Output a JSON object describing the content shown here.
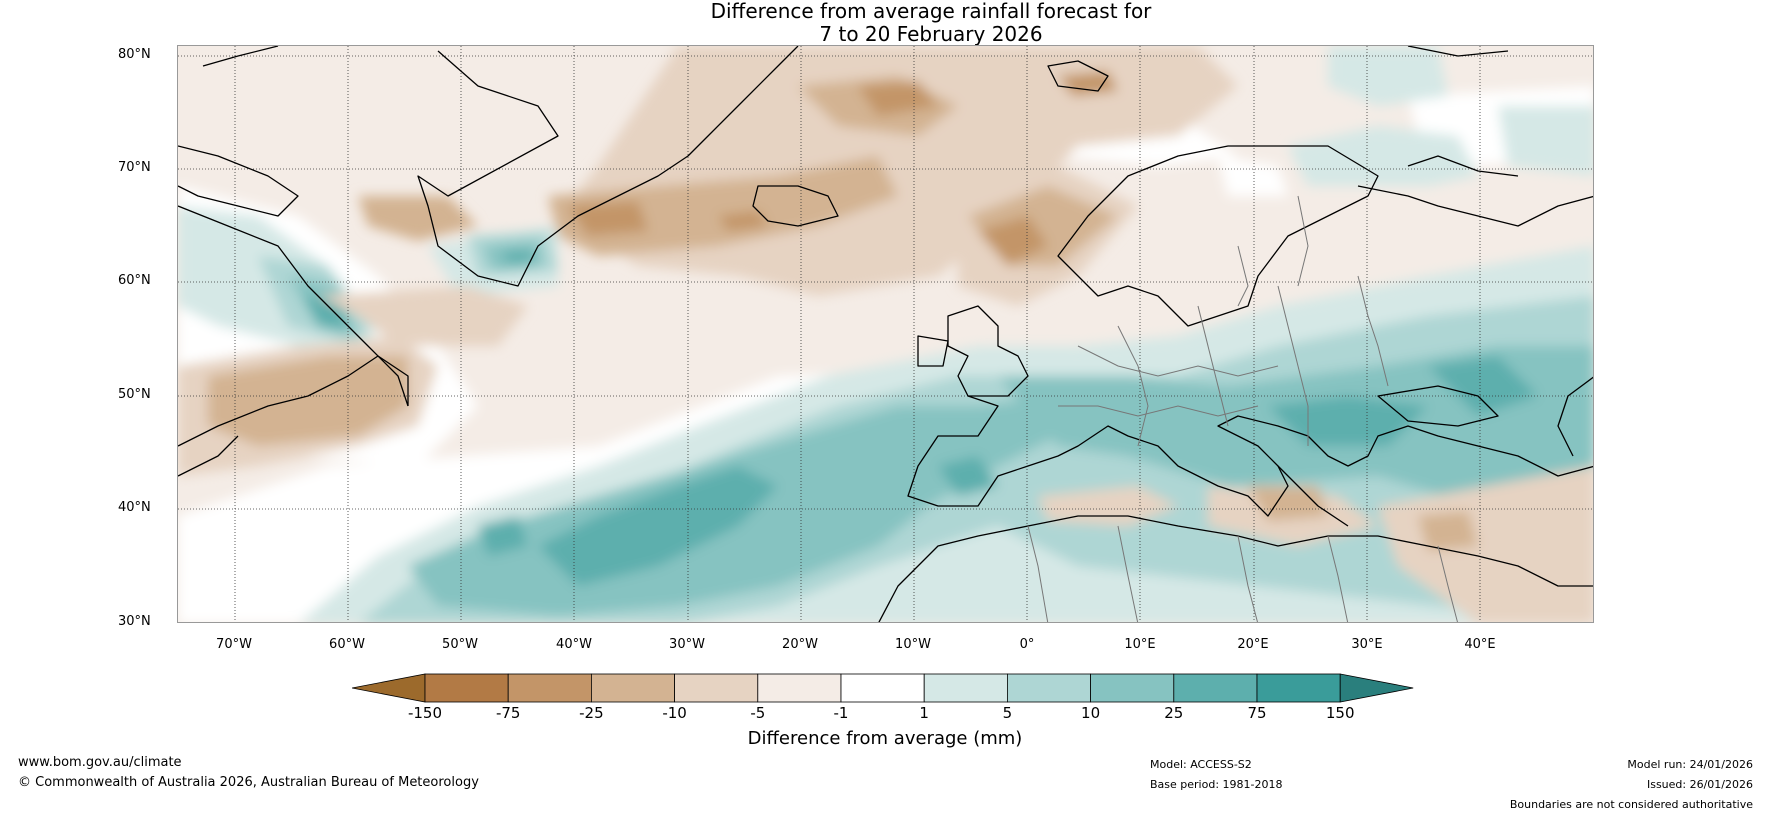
{
  "title": {
    "line1": "Difference from average rainfall forecast for",
    "line2": "7 to 20 February 2026"
  },
  "axes": {
    "lat_labels": [
      "80°N",
      "70°N",
      "60°N",
      "50°N",
      "40°N",
      "30°N"
    ],
    "lon_labels": [
      "70°W",
      "60°W",
      "50°W",
      "40°W",
      "30°W",
      "20°W",
      "10°W",
      "0°",
      "10°E",
      "20°E",
      "30°E",
      "40°E"
    ]
  },
  "colorbar": {
    "title": "Difference from average (mm)",
    "tick_labels": [
      "-150",
      "-75",
      "-25",
      "-10",
      "-5",
      "-1",
      "1",
      "5",
      "10",
      "25",
      "75",
      "150"
    ],
    "colors": [
      "#9c6a2c",
      "#b27a45",
      "#c39568",
      "#d3b392",
      "#e6d3c2",
      "#f4ece6",
      "#ffffff",
      "#d5e8e6",
      "#aed6d4",
      "#86c3c1",
      "#5dafad",
      "#3a9c9a",
      "#2a7f7d"
    ]
  },
  "footer": {
    "website": "www.bom.gov.au/climate",
    "copyright": "© Commonwealth of Australia 2026, Australian Bureau of Meteorology",
    "model": "Model: ACCESS-S2",
    "base_period": "Base period: 1981-2018",
    "model_run": "Model run: 24/01/2026",
    "issued": "Issued: 26/01/2026",
    "disclaimer": "Boundaries are not considered authoritative"
  }
}
